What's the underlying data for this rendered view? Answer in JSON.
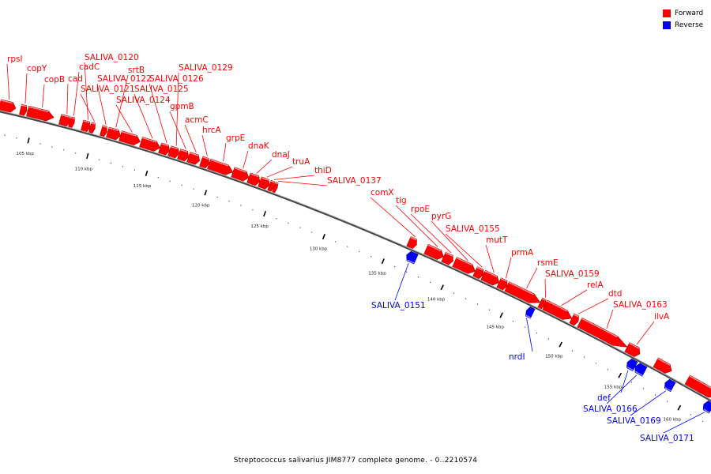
{
  "legend": [
    {
      "label": "Forward",
      "color": "#ff0000"
    },
    {
      "label": "Reverse",
      "color": "#0000ff"
    }
  ],
  "caption": "Streptococcus salivarius JIM8777 complete genome. - 0..2210574",
  "colors": {
    "forward": "#ff0000",
    "reverse": "#0000ff",
    "backbone": "#666666"
  },
  "ticks": [
    {
      "kb": 105,
      "label": "105 kbp"
    },
    {
      "kb": 110,
      "label": "110 kbp"
    },
    {
      "kb": 115,
      "label": "115 kbp"
    },
    {
      "kb": 120,
      "label": "120 kbp"
    },
    {
      "kb": 125,
      "label": "125 kbp"
    },
    {
      "kb": 130,
      "label": "130 kbp"
    },
    {
      "kb": 135,
      "label": "135 kbp"
    },
    {
      "kb": 140,
      "label": "140 kbp"
    },
    {
      "kb": 145,
      "label": "145 kbp"
    },
    {
      "kb": 150,
      "label": "150 kbp"
    },
    {
      "kb": 155,
      "label": "155 kbp"
    },
    {
      "kb": 160,
      "label": "160 kbp"
    }
  ],
  "genes": [
    {
      "name": "rpsI",
      "strand": "forward"
    },
    {
      "name": "copY",
      "strand": "forward"
    },
    {
      "name": "copB",
      "strand": "forward"
    },
    {
      "name": "cad",
      "strand": "forward"
    },
    {
      "name": "cadC",
      "strand": "forward"
    },
    {
      "name": "SALIVA_0120",
      "strand": "forward"
    },
    {
      "name": "SALIVA_0121",
      "strand": "forward"
    },
    {
      "name": "SALIVA_0122",
      "strand": "forward"
    },
    {
      "name": "srtB",
      "strand": "forward"
    },
    {
      "name": "SALIVA_0124",
      "strand": "forward"
    },
    {
      "name": "SALIVA_0125",
      "strand": "forward"
    },
    {
      "name": "SALIVA_0126",
      "strand": "forward"
    },
    {
      "name": "SALIVA_0129",
      "strand": "forward"
    },
    {
      "name": "gpmB",
      "strand": "forward"
    },
    {
      "name": "acmC",
      "strand": "forward"
    },
    {
      "name": "hrcA",
      "strand": "forward"
    },
    {
      "name": "grpE",
      "strand": "forward"
    },
    {
      "name": "dnaK",
      "strand": "forward"
    },
    {
      "name": "dnaJ",
      "strand": "forward"
    },
    {
      "name": "truA",
      "strand": "forward"
    },
    {
      "name": "thiD",
      "strand": "forward"
    },
    {
      "name": "SALIVA_0137",
      "strand": "forward"
    },
    {
      "name": "comX",
      "strand": "forward"
    },
    {
      "name": "tig",
      "strand": "forward"
    },
    {
      "name": "rpoE",
      "strand": "forward"
    },
    {
      "name": "pyrG",
      "strand": "forward"
    },
    {
      "name": "SALIVA_0155",
      "strand": "forward"
    },
    {
      "name": "mutT",
      "strand": "forward"
    },
    {
      "name": "prmA",
      "strand": "forward"
    },
    {
      "name": "rsmE",
      "strand": "forward"
    },
    {
      "name": "SALIVA_0159",
      "strand": "forward"
    },
    {
      "name": "relA",
      "strand": "forward"
    },
    {
      "name": "dtd",
      "strand": "forward"
    },
    {
      "name": "SALIVA_0163",
      "strand": "forward"
    },
    {
      "name": "ilvA",
      "strand": "forward"
    },
    {
      "name": "SALIVA_0151",
      "strand": "reverse"
    },
    {
      "name": "nrdI",
      "strand": "reverse"
    },
    {
      "name": "def",
      "strand": "reverse"
    },
    {
      "name": "SALIVA_0166",
      "strand": "reverse"
    },
    {
      "name": "SALIVA_0169",
      "strand": "reverse"
    },
    {
      "name": "SALIVA_0171",
      "strand": "reverse"
    }
  ]
}
